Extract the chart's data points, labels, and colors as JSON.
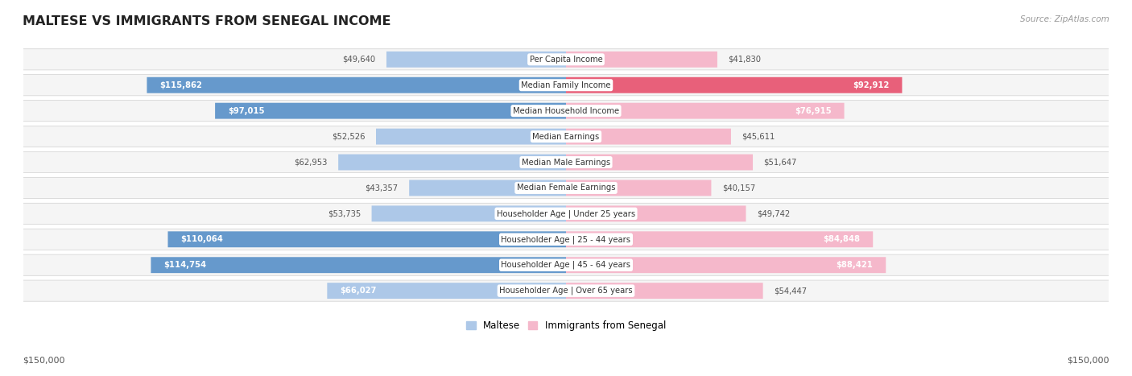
{
  "title": "MALTESE VS IMMIGRANTS FROM SENEGAL INCOME",
  "source": "Source: ZipAtlas.com",
  "categories": [
    "Per Capita Income",
    "Median Family Income",
    "Median Household Income",
    "Median Earnings",
    "Median Male Earnings",
    "Median Female Earnings",
    "Householder Age | Under 25 years",
    "Householder Age | 25 - 44 years",
    "Householder Age | 45 - 64 years",
    "Householder Age | Over 65 years"
  ],
  "maltese_values": [
    49640,
    115862,
    97015,
    52526,
    62953,
    43357,
    53735,
    110064,
    114754,
    66027
  ],
  "senegal_values": [
    41830,
    92912,
    76915,
    45611,
    51647,
    40157,
    49742,
    84848,
    88421,
    54447
  ],
  "maltese_labels": [
    "$49,640",
    "$115,862",
    "$97,015",
    "$52,526",
    "$62,953",
    "$43,357",
    "$53,735",
    "$110,064",
    "$114,754",
    "$66,027"
  ],
  "senegal_labels": [
    "$41,830",
    "$92,912",
    "$76,915",
    "$45,611",
    "$51,647",
    "$40,157",
    "$49,742",
    "$84,848",
    "$88,421",
    "$54,447"
  ],
  "maltese_color_light": "#adc8e8",
  "maltese_color_dark": "#6699cc",
  "senegal_color_light": "#f5b8cb",
  "senegal_color_dark": "#e8607a",
  "max_value": 150000,
  "bg_color": "#ffffff",
  "row_bg_light": "#f5f5f5",
  "row_bg_dark": "#e8e8e8",
  "row_border": "#cccccc",
  "legend_maltese": "Maltese",
  "legend_senegal": "Immigrants from Senegal",
  "bottom_label_left": "$150,000",
  "bottom_label_right": "$150,000",
  "inside_label_threshold": 65000,
  "label_color_inside": "#ffffff",
  "label_color_outside": "#555555",
  "cat_label_color": "#333333",
  "title_color": "#222222",
  "source_color": "#999999"
}
